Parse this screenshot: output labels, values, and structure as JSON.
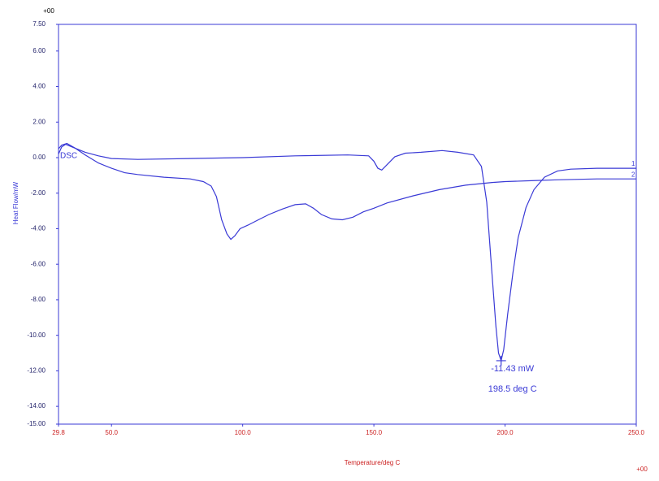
{
  "chart_data": {
    "type": "line",
    "y_exponent": "+00",
    "x_exponent": "+00",
    "ylabel": "Heat Flow/mW",
    "xlabel": "Temperature/deg C",
    "curve_label": "DSC",
    "xlim": [
      29.8,
      250.0
    ],
    "ylim": [
      -15.0,
      7.5
    ],
    "xticks": [
      29.8,
      {
        "value": 50,
        "label": "50.0"
      },
      {
        "value": 100,
        "label": "100.0"
      },
      {
        "value": 150,
        "label": "150.0"
      },
      {
        "value": 200,
        "label": "200.0"
      },
      {
        "value": 250,
        "label": "250.0"
      }
    ],
    "yticks": [
      {
        "value": 7.5,
        "label": "7.50"
      },
      {
        "value": 6,
        "label": "6.00"
      },
      {
        "value": 4,
        "label": "4.00"
      },
      {
        "value": 2,
        "label": "2.00"
      },
      {
        "value": 0,
        "label": "0.00"
      },
      {
        "value": -2,
        "label": "-2.00"
      },
      {
        "value": -4,
        "label": "-4.00"
      },
      {
        "value": -6,
        "label": "-6.00"
      },
      {
        "value": -8,
        "label": "-8.00"
      },
      {
        "value": -10,
        "label": "-10.00"
      },
      {
        "value": -12,
        "label": "-12.00"
      },
      {
        "value": -14,
        "label": "-14.00"
      },
      {
        "value": -15,
        "label": "-15.00"
      }
    ],
    "series": [
      {
        "name": "1",
        "color": "#3a3ad6",
        "x": [
          29.8,
          31,
          32.5,
          35,
          40,
          45,
          50,
          60,
          80,
          100,
          120,
          140,
          148,
          150,
          151.5,
          153,
          155,
          158,
          162,
          168,
          176,
          182,
          188,
          191,
          193,
          195,
          196.5,
          197.5,
          198.5,
          199.5,
          201,
          203,
          205,
          208,
          211,
          215,
          220,
          225,
          235,
          250
        ],
        "values": [
          0.2,
          0.6,
          0.75,
          0.6,
          0.3,
          0.1,
          -0.05,
          -0.1,
          -0.05,
          0,
          0.1,
          0.15,
          0.1,
          -0.2,
          -0.6,
          -0.7,
          -0.4,
          0.05,
          0.25,
          0.3,
          0.4,
          0.3,
          0.15,
          -0.5,
          -2.5,
          -6.5,
          -9.5,
          -11,
          -11.43,
          -10.8,
          -8.8,
          -6.5,
          -4.5,
          -2.8,
          -1.8,
          -1.1,
          -0.75,
          -0.65,
          -0.6,
          -0.6
        ]
      },
      {
        "name": "2",
        "color": "#3a3ad6",
        "x": [
          29.8,
          31,
          33,
          36,
          40,
          45,
          50,
          55,
          60,
          70,
          80,
          85,
          88,
          90,
          92,
          94,
          95.5,
          97,
          99,
          102,
          106,
          110,
          115,
          120,
          124,
          127,
          130,
          134,
          138,
          142,
          146,
          150,
          155,
          165,
          175,
          185,
          195,
          200,
          210,
          220,
          235,
          250
        ],
        "values": [
          0.5,
          0.7,
          0.8,
          0.55,
          0.15,
          -0.3,
          -0.6,
          -0.85,
          -0.95,
          -1.1,
          -1.2,
          -1.35,
          -1.6,
          -2.2,
          -3.5,
          -4.3,
          -4.6,
          -4.4,
          -4.0,
          -3.8,
          -3.5,
          -3.2,
          -2.9,
          -2.65,
          -2.6,
          -2.85,
          -3.2,
          -3.45,
          -3.5,
          -3.35,
          -3.05,
          -2.85,
          -2.55,
          -2.15,
          -1.8,
          -1.55,
          -1.4,
          -1.35,
          -1.3,
          -1.25,
          -1.2,
          -1.2
        ]
      }
    ],
    "peak": {
      "x": 198.5,
      "y": -11.43,
      "value_label": "-11.43 mW",
      "x_label": "198.5 deg C"
    }
  }
}
